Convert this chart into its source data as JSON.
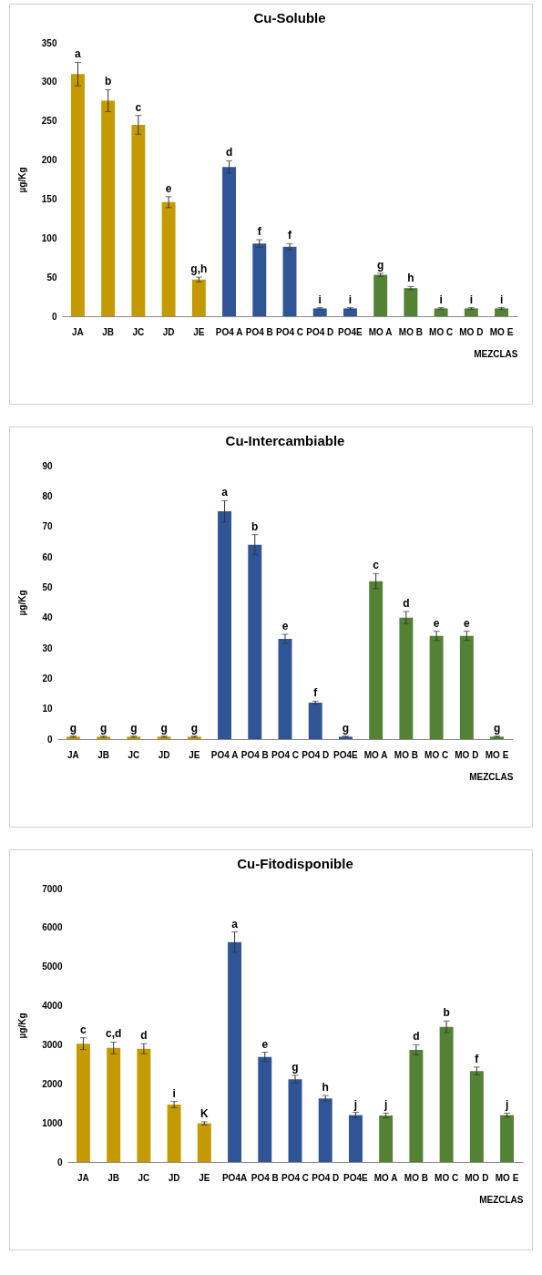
{
  "chart_data": [
    {
      "type": "bar",
      "title": "Cu-Soluble",
      "xlabel": "MEZCLAS",
      "ylabel": "µg/Kg",
      "categories": [
        "JA",
        "JB",
        "JC",
        "JD",
        "JE",
        "PO4 A",
        "PO4 B",
        "PO4 C",
        "PO4 D",
        "PO4E",
        "MO A",
        "MO B",
        "MO C",
        "MO D",
        "MO E"
      ],
      "values": [
        310,
        276,
        245,
        146,
        47,
        191,
        93,
        89,
        10,
        10,
        53,
        36,
        10,
        10,
        10
      ],
      "errors": [
        15,
        14,
        12,
        7,
        3,
        8,
        5,
        4,
        1,
        1,
        2,
        2,
        1,
        1,
        1
      ],
      "colors": [
        "#c59a00",
        "#c59a00",
        "#c59a00",
        "#c59a00",
        "#c59a00",
        "#2f5597",
        "#2f5597",
        "#2f5597",
        "#2f5597",
        "#2f5597",
        "#548235",
        "#548235",
        "#548235",
        "#548235",
        "#548235"
      ],
      "value_labels": [
        "a",
        "b",
        "c",
        "e",
        "g,h",
        "d",
        "f",
        "f",
        "i",
        "i",
        "g",
        "h",
        "i",
        "i",
        "i"
      ],
      "ylim": [
        0,
        350
      ],
      "yticks": [
        0,
        50,
        100,
        150,
        200,
        250,
        300,
        350
      ],
      "grid": false,
      "legend": false
    },
    {
      "type": "bar",
      "title": "Cu-Intercambiable",
      "xlabel": "MEZCLAS",
      "ylabel": "µg/Kg",
      "categories": [
        "JA",
        "JB",
        "JC",
        "JD",
        "JE",
        "PO4 A",
        "PO4 B",
        "PO4 C",
        "PO4 D",
        "PO4E",
        "MO A",
        "MO B",
        "MO C",
        "MO D",
        "MO E"
      ],
      "values": [
        0.8,
        0.8,
        0.8,
        0.8,
        0.8,
        75,
        64,
        33,
        12,
        0.8,
        52,
        40,
        34,
        34,
        0.8
      ],
      "errors": [
        0.2,
        0.2,
        0.2,
        0.2,
        0.2,
        3.5,
        3.3,
        1.5,
        0.5,
        0.2,
        2.5,
        2,
        1.5,
        1.5,
        0.2
      ],
      "colors": [
        "#c59a00",
        "#c59a00",
        "#c59a00",
        "#c59a00",
        "#c59a00",
        "#2f5597",
        "#2f5597",
        "#2f5597",
        "#2f5597",
        "#2f5597",
        "#548235",
        "#548235",
        "#548235",
        "#548235",
        "#548235"
      ],
      "value_labels": [
        "g",
        "g",
        "g",
        "g",
        "g",
        "a",
        "b",
        "e",
        "f",
        "g",
        "c",
        "d",
        "e",
        "e",
        "g"
      ],
      "ylim": [
        0,
        90
      ],
      "yticks": [
        0,
        10,
        20,
        30,
        40,
        50,
        60,
        70,
        80,
        90
      ],
      "grid": false,
      "legend": false
    },
    {
      "type": "bar",
      "title": "Cu-Fitodisponible",
      "xlabel": "MEZCLAS",
      "ylabel": "µg/Kg",
      "categories": [
        "JA",
        "JB",
        "JC",
        "JD",
        "JE",
        "PO4A",
        "PO4 B",
        "PO4 C",
        "PO4 D",
        "PO4E",
        "MO A",
        "MO B",
        "MO C",
        "MO D",
        "MO E"
      ],
      "values": [
        3030,
        2920,
        2900,
        1470,
        990,
        5630,
        2690,
        2120,
        1630,
        1200,
        1190,
        2870,
        3460,
        2330,
        1200
      ],
      "errors": [
        150,
        150,
        130,
        80,
        40,
        260,
        120,
        100,
        70,
        70,
        60,
        130,
        150,
        100,
        50
      ],
      "colors": [
        "#c59a00",
        "#c59a00",
        "#c59a00",
        "#c59a00",
        "#c59a00",
        "#2f5597",
        "#2f5597",
        "#2f5597",
        "#2f5597",
        "#2f5597",
        "#548235",
        "#548235",
        "#548235",
        "#548235",
        "#548235"
      ],
      "value_labels": [
        "c",
        "c,d",
        "d",
        "i",
        "K",
        "a",
        "e",
        "g",
        "h",
        "j",
        "j",
        "d",
        "b",
        "f",
        "j"
      ],
      "ylim": [
        0,
        7000
      ],
      "yticks": [
        0,
        1000,
        2000,
        3000,
        4000,
        5000,
        6000,
        7000
      ],
      "grid": false,
      "legend": false
    }
  ]
}
